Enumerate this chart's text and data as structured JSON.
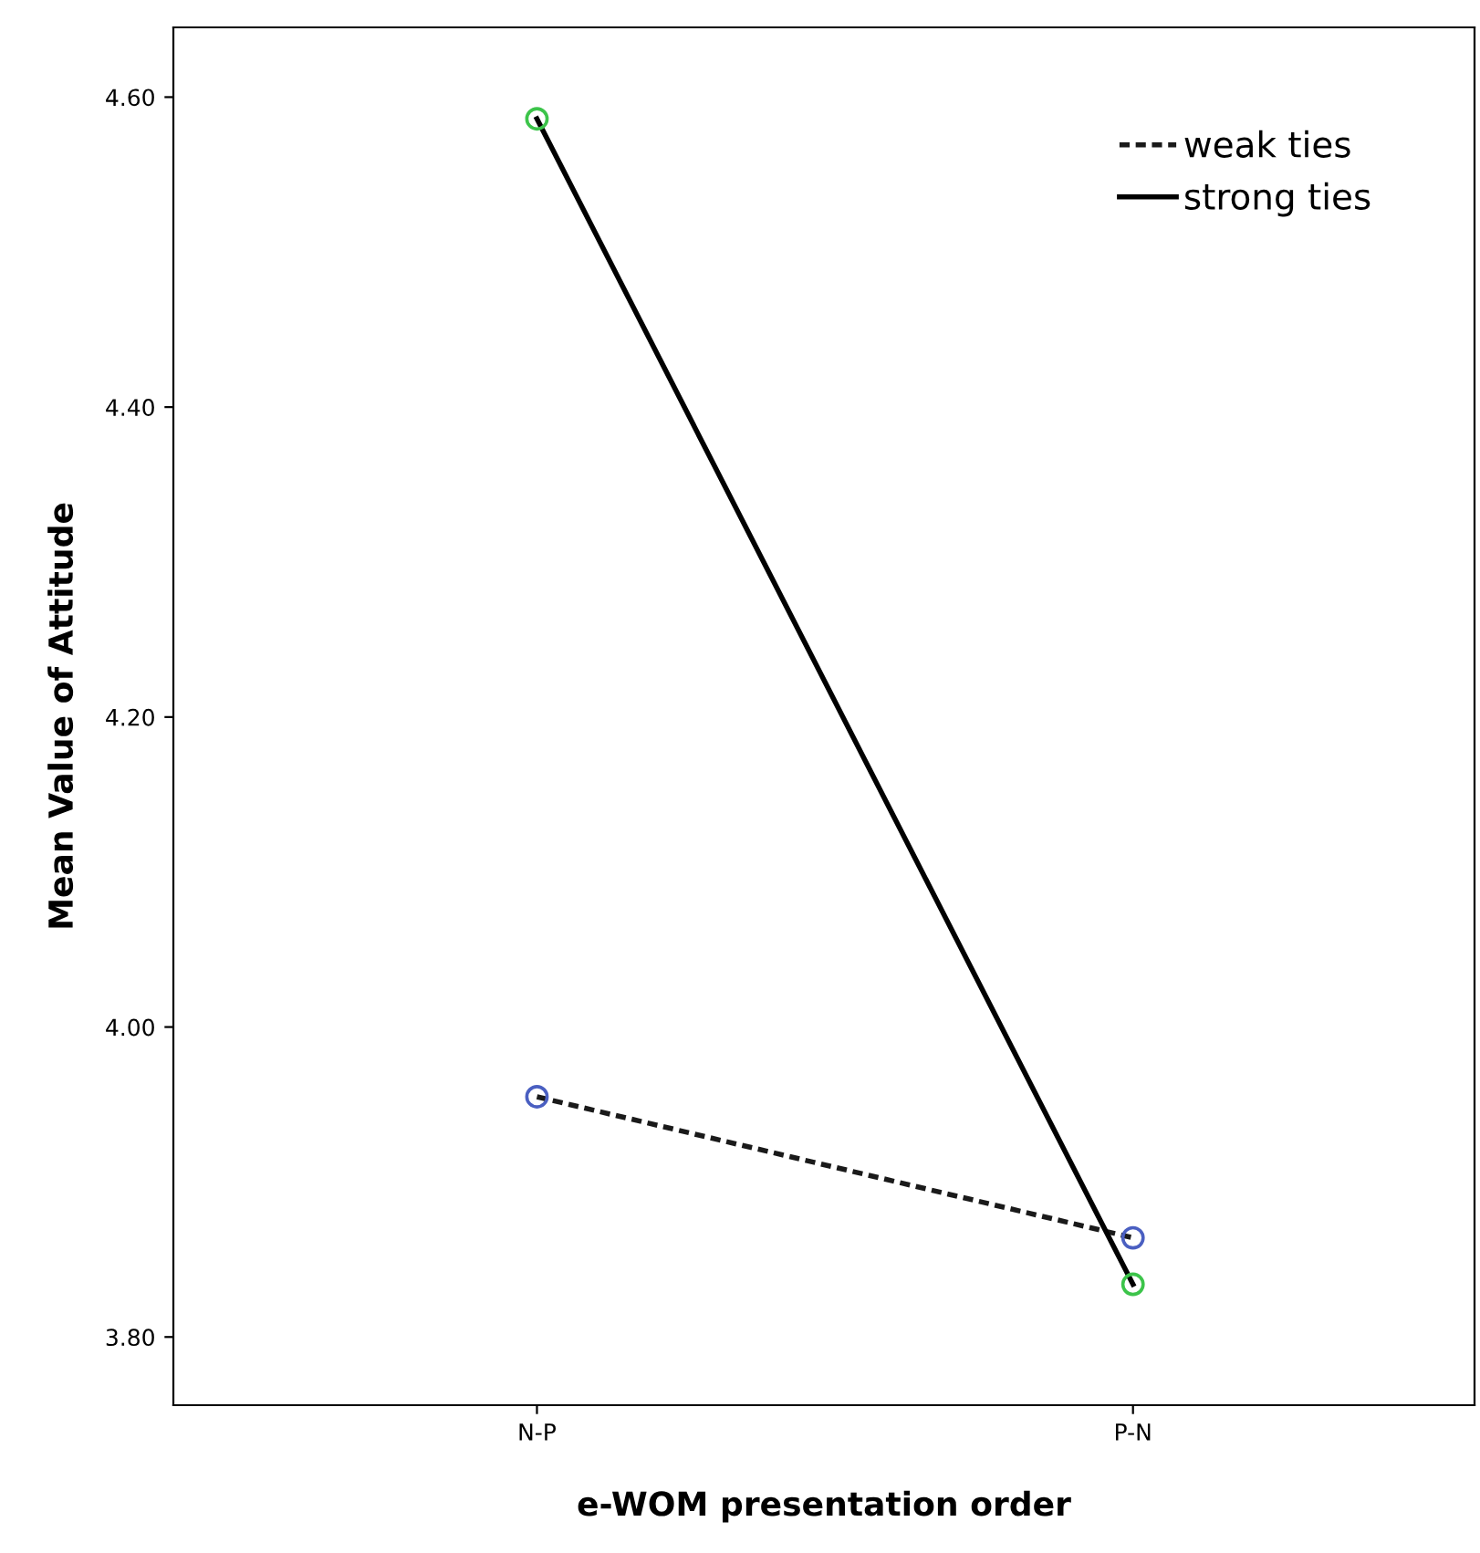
{
  "chart_data": {
    "type": "line",
    "xlabel": "e-WOM presentation order",
    "ylabel": "Mean Value of Attitude",
    "categories": [
      "N-P",
      "P-N"
    ],
    "series": [
      {
        "name": "weak ties",
        "color": "#1a1a1a",
        "colors": [
          "#4a5fc1",
          "#4a5fc1"
        ],
        "line_style": "dotted",
        "values": [
          3.955,
          3.864
        ]
      },
      {
        "name": "strong ties",
        "color": "#000000",
        "colors": [
          "#3cc44a",
          "#3cc44a"
        ],
        "line_style": "solid",
        "values": [
          4.586,
          3.834
        ]
      }
    ],
    "ylim": [
      3.756,
      4.645
    ],
    "yticks": [
      {
        "value": 3.8,
        "label": "3.80"
      },
      {
        "value": 4.0,
        "label": "4.00"
      },
      {
        "value": 4.2,
        "label": "4.20"
      },
      {
        "value": 4.4,
        "label": "4.40"
      },
      {
        "value": 4.6,
        "label": "4.60"
      }
    ],
    "marker": "circle",
    "grid": false,
    "legend": "top right"
  }
}
